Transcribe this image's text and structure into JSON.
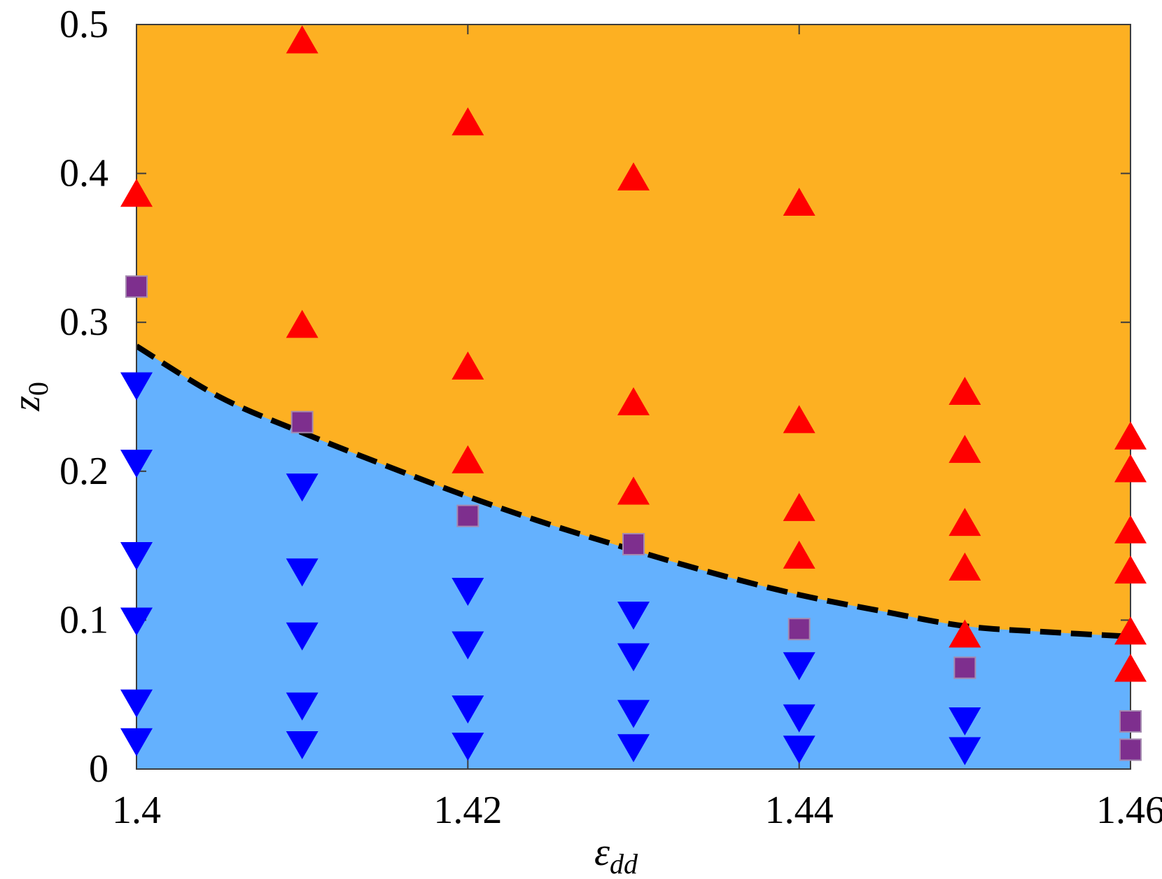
{
  "chart_data": {
    "type": "scatter",
    "title": "",
    "xlabel": "ε",
    "xlabel_subscript": "dd",
    "ylabel": "z",
    "ylabel_subscript": "0",
    "xlim": [
      1.4,
      1.46
    ],
    "ylim": [
      0,
      0.5
    ],
    "x_ticks": [
      1.4,
      1.42,
      1.44,
      1.46
    ],
    "x_tick_labels": [
      "1.4",
      "1.42",
      "1.44",
      "1.46"
    ],
    "y_ticks": [
      0,
      0.1,
      0.2,
      0.3,
      0.4,
      0.5
    ],
    "y_tick_labels": [
      "0",
      "0.1",
      "0.2",
      "0.3",
      "0.4",
      "0.5"
    ],
    "grid": false,
    "legend": "none",
    "regions": {
      "upper_color": "#FDB022",
      "lower_color": "#64B1FE"
    },
    "boundary": {
      "style": "dashed",
      "color": "#000000",
      "x": [
        1.4,
        1.405,
        1.41,
        1.415,
        1.42,
        1.425,
        1.43,
        1.435,
        1.44,
        1.445,
        1.45,
        1.455,
        1.46
      ],
      "y": [
        0.284,
        0.25,
        0.226,
        0.204,
        0.183,
        0.164,
        0.147,
        0.131,
        0.117,
        0.106,
        0.096,
        0.092,
        0.089
      ]
    },
    "series": [
      {
        "marker": "triangle-up",
        "color": "#FF0000",
        "points": [
          [
            1.4,
            0.387
          ],
          [
            1.41,
            0.49
          ],
          [
            1.41,
            0.299
          ],
          [
            1.42,
            0.435
          ],
          [
            1.42,
            0.271
          ],
          [
            1.42,
            0.208
          ],
          [
            1.43,
            0.398
          ],
          [
            1.43,
            0.247
          ],
          [
            1.43,
            0.187
          ],
          [
            1.44,
            0.381
          ],
          [
            1.44,
            0.235
          ],
          [
            1.44,
            0.176
          ],
          [
            1.44,
            0.144
          ],
          [
            1.45,
            0.254
          ],
          [
            1.45,
            0.215
          ],
          [
            1.45,
            0.166
          ],
          [
            1.45,
            0.136
          ],
          [
            1.45,
            0.091
          ],
          [
            1.46,
            0.224
          ],
          [
            1.46,
            0.202
          ],
          [
            1.46,
            0.161
          ],
          [
            1.46,
            0.134
          ],
          [
            1.46,
            0.093
          ],
          [
            1.46,
            0.068
          ]
        ]
      },
      {
        "marker": "triangle-down",
        "color": "#0000FF",
        "points": [
          [
            1.4,
            0.257
          ],
          [
            1.4,
            0.205
          ],
          [
            1.4,
            0.143
          ],
          [
            1.4,
            0.099
          ],
          [
            1.4,
            0.044
          ],
          [
            1.4,
            0.018
          ],
          [
            1.41,
            0.189
          ],
          [
            1.41,
            0.132
          ],
          [
            1.41,
            0.089
          ],
          [
            1.41,
            0.042
          ],
          [
            1.41,
            0.016
          ],
          [
            1.42,
            0.119
          ],
          [
            1.42,
            0.083
          ],
          [
            1.42,
            0.04
          ],
          [
            1.42,
            0.015
          ],
          [
            1.43,
            0.103
          ],
          [
            1.43,
            0.075
          ],
          [
            1.43,
            0.037
          ],
          [
            1.43,
            0.014
          ],
          [
            1.44,
            0.069
          ],
          [
            1.44,
            0.034
          ],
          [
            1.44,
            0.013
          ],
          [
            1.45,
            0.032
          ],
          [
            1.45,
            0.012
          ]
        ]
      },
      {
        "marker": "square",
        "color": "#7E2F8E",
        "points": [
          [
            1.4,
            0.324
          ],
          [
            1.41,
            0.233
          ],
          [
            1.42,
            0.17
          ],
          [
            1.43,
            0.151
          ],
          [
            1.44,
            0.094
          ],
          [
            1.45,
            0.068
          ],
          [
            1.46,
            0.032
          ],
          [
            1.46,
            0.013
          ]
        ]
      }
    ]
  }
}
